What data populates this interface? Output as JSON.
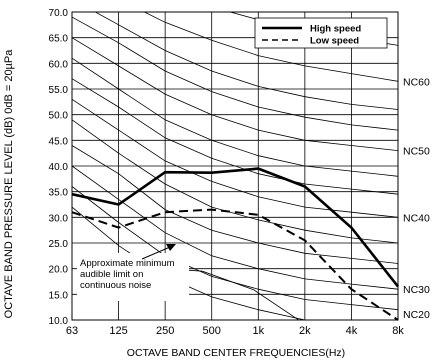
{
  "chart_data": {
    "type": "line",
    "ylabel": "OCTAVE BAND PRESSURE LEVEL (dB) 0dB = 20µPa",
    "xlabel": "OCTAVE BAND CENTER FREQUENCIES(Hz)",
    "categories": [
      "63",
      "125",
      "250",
      "500",
      "1k",
      "2k",
      "4k",
      "8k"
    ],
    "ylim": [
      10,
      70
    ],
    "yticks": [
      "10.0",
      "15.0",
      "20.0",
      "25.0",
      "30.0",
      "35.0",
      "40.0",
      "45.0",
      "50.0",
      "55.0",
      "60.0",
      "65.0",
      "70.0"
    ],
    "grid": true,
    "legend_position": "top-right",
    "series": [
      {
        "name": "High speed",
        "style": "solid",
        "color": "#000000",
        "values": [
          34.5,
          32.5,
          38.8,
          38.7,
          39.5,
          36,
          28,
          16.5
        ]
      },
      {
        "name": "Low speed",
        "style": "dashed",
        "color": "#000000",
        "values": [
          31,
          28,
          31,
          31.5,
          30.5,
          25.5,
          16,
          10
        ]
      }
    ],
    "nc_curves": [
      {
        "values": [
          82,
          78.5,
          74.5,
          71,
          68.5,
          66.5,
          65,
          63.5
        ]
      },
      {
        "label": "NC60",
        "values": [
          77,
          72.5,
          68,
          64.5,
          61.5,
          59.5,
          58,
          56.5
        ]
      },
      {
        "values": [
          72.5,
          67.5,
          62.5,
          58.5,
          55.5,
          53.5,
          52,
          51
        ]
      },
      {
        "values": [
          69,
          64,
          58.5,
          54.5,
          51.5,
          49.5,
          48,
          47
        ]
      },
      {
        "label": "NC50",
        "values": [
          65,
          59.5,
          54,
          50,
          47,
          45,
          44,
          43
        ]
      },
      {
        "values": [
          61,
          55,
          49,
          45,
          42,
          40,
          39,
          38
        ]
      },
      {
        "values": [
          57,
          51.5,
          45.5,
          41.5,
          38.5,
          36.5,
          35.5,
          34.5
        ]
      },
      {
        "label": "NC40",
        "values": [
          53,
          47,
          41,
          37,
          34,
          32,
          31,
          30
        ]
      },
      {
        "values": [
          49,
          42.5,
          36.5,
          32,
          29.5,
          27.5,
          26,
          25
        ]
      },
      {
        "values": [
          44,
          38.5,
          31.5,
          27.5,
          25,
          23,
          22,
          21
        ]
      },
      {
        "label": "NC30",
        "values": [
          40,
          33.5,
          27,
          22.5,
          20,
          18,
          17,
          16
        ]
      },
      {
        "values": [
          36,
          29,
          22.5,
          18.5,
          16,
          14,
          13,
          12
        ]
      },
      {
        "label": "NC20",
        "values": [
          32,
          24.5,
          18.5,
          14.5,
          12,
          10,
          9,
          8
        ]
      }
    ],
    "threshold_curve": {
      "label_lines": [
        "Approximate minimum",
        "audible limit on",
        "continuous noise"
      ],
      "points": [
        [
          6,
          3.1
        ],
        [
          3.9,
          15.9
        ],
        [
          2.8,
          19.5
        ],
        [
          2.2,
          19.9
        ]
      ]
    }
  }
}
